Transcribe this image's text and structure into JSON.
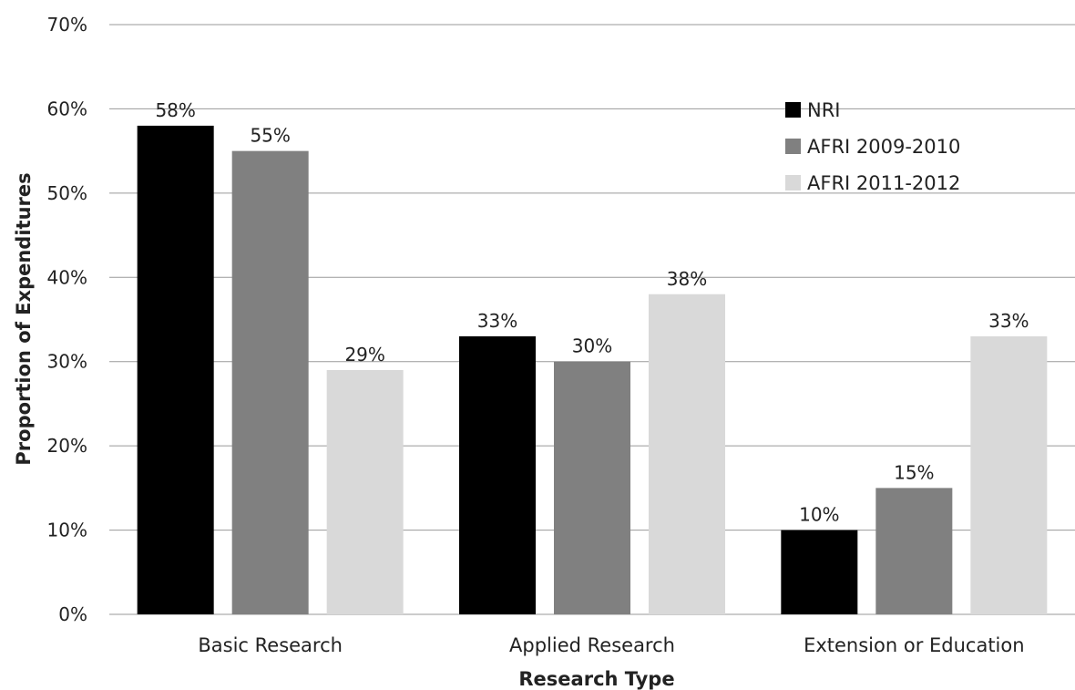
{
  "chart_data": {
    "type": "bar",
    "xlabel": "Research Type",
    "ylabel": "Proportion of Expenditures",
    "ylim": [
      0,
      70
    ],
    "y_ticks": [
      0,
      10,
      20,
      30,
      40,
      50,
      60,
      70
    ],
    "y_tick_labels": [
      "0%",
      "10%",
      "20%",
      "30%",
      "40%",
      "50%",
      "60%",
      "70%"
    ],
    "grid": true,
    "legend_position": "top-right",
    "categories": [
      "Basic Research",
      "Applied Research",
      "Extension or Education"
    ],
    "series": [
      {
        "name": "NRI",
        "color": "#000000",
        "values": [
          58,
          33,
          10
        ],
        "labels": [
          "58%",
          "33%",
          "10%"
        ]
      },
      {
        "name": "AFRI 2009-2010",
        "color": "#808080",
        "values": [
          55,
          30,
          15
        ],
        "labels": [
          "55%",
          "30%",
          "15%"
        ]
      },
      {
        "name": "AFRI 2011-2012",
        "color": "#d9d9d9",
        "values": [
          29,
          38,
          33
        ],
        "labels": [
          "29%",
          "38%",
          "33%"
        ]
      }
    ]
  }
}
